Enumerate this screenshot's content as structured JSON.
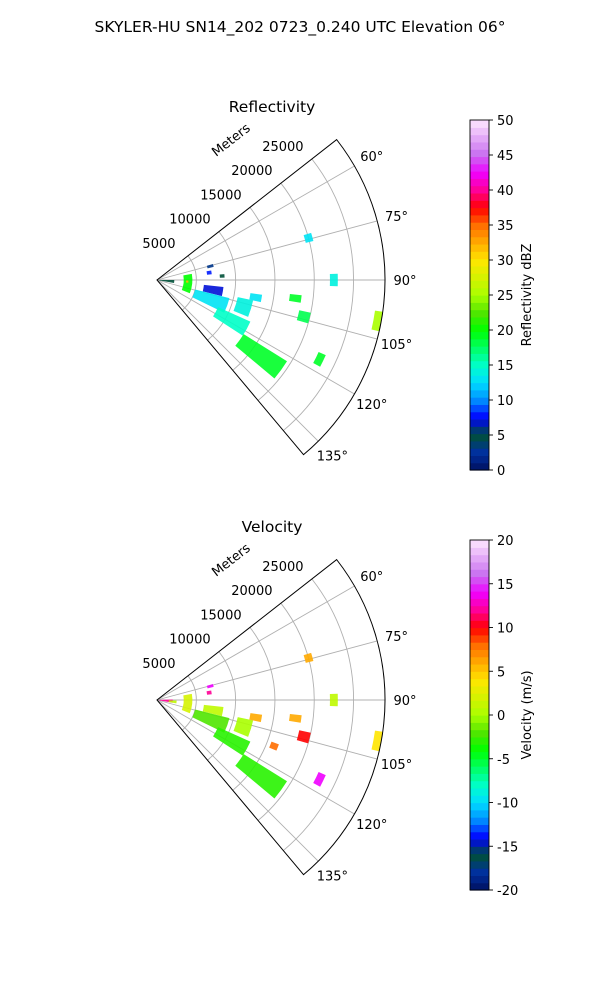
{
  "suptitle": "SKYLER-HU  SN14_202  0723_0.240 UTC Elevation 06°",
  "chart_data": [
    {
      "type": "polar-sector",
      "title": "Reflectivity",
      "radial_label": "Meters",
      "radial_ticks": [
        "5000",
        "10000",
        "15000",
        "20000",
        "25000"
      ],
      "radial_values": [
        5000,
        10000,
        15000,
        20000,
        25000
      ],
      "rmax": 29000,
      "theta_ticks": [
        "60°",
        "75°",
        "90°",
        "105°",
        "120°",
        "135°"
      ],
      "theta_values": [
        60,
        75,
        90,
        105,
        120,
        135
      ],
      "theta_range": [
        52,
        140
      ],
      "colorbar": {
        "label": "Reflectivity dBZ",
        "range": [
          0,
          50
        ],
        "ticks": [
          "0",
          "5",
          "10",
          "15",
          "20",
          "25",
          "30",
          "35",
          "40",
          "45",
          "50"
        ],
        "tick_values": [
          0,
          5,
          10,
          15,
          20,
          25,
          30,
          35,
          40,
          45,
          50
        ]
      },
      "echo_regions": [
        {
          "theta": [
            90,
            100
          ],
          "r": [
            300,
            2200
          ],
          "value": 5
        },
        {
          "theta": [
            80,
            112
          ],
          "r": [
            3400,
            4500
          ],
          "value": 20
        },
        {
          "theta": [
            91,
            95
          ],
          "r": [
            3700,
            4000
          ],
          "value": 32
        },
        {
          "theta": [
            96,
            104
          ],
          "r": [
            6000,
            8500
          ],
          "value": 7
        },
        {
          "theta": [
            104,
            116
          ],
          "r": [
            5000,
            9500
          ],
          "value": 13
        },
        {
          "theta": [
            114,
            123
          ],
          "r": [
            8500,
            13000
          ],
          "value": 15
        },
        {
          "theta": [
            122,
            130
          ],
          "r": [
            13000,
            19500
          ],
          "value": 19
        },
        {
          "theta": [
            102,
            112
          ],
          "r": [
            10500,
            12500
          ],
          "value": 14
        },
        {
          "theta": [
            98,
            102
          ],
          "r": [
            12000,
            13500
          ],
          "value": 13
        },
        {
          "theta": [
            96,
            99
          ],
          "r": [
            17000,
            18500
          ],
          "value": 19
        },
        {
          "theta": [
            102,
            106
          ],
          "r": [
            18500,
            20000
          ],
          "value": 18
        },
        {
          "theta": [
            114,
            118
          ],
          "r": [
            22500,
            23500
          ],
          "value": 19
        },
        {
          "theta": [
            98,
            103
          ],
          "r": [
            28000,
            29000
          ],
          "value": 25
        },
        {
          "theta": [
            88,
            92
          ],
          "r": [
            22000,
            23000
          ],
          "value": 14
        },
        {
          "theta": [
            73,
            76
          ],
          "r": [
            19500,
            20500
          ],
          "value": 13
        },
        {
          "theta": [
            85,
            88
          ],
          "r": [
            8000,
            8600
          ],
          "value": 5
        },
        {
          "theta": [
            74,
            77
          ],
          "r": [
            6600,
            7400
          ],
          "value": 3
        },
        {
          "theta": [
            80,
            84
          ],
          "r": [
            6400,
            7000
          ],
          "value": 8
        }
      ]
    },
    {
      "type": "polar-sector",
      "title": "Velocity",
      "radial_label": "Meters",
      "radial_ticks": [
        "5000",
        "10000",
        "15000",
        "20000",
        "25000"
      ],
      "radial_values": [
        5000,
        10000,
        15000,
        20000,
        25000
      ],
      "rmax": 29000,
      "theta_ticks": [
        "60°",
        "75°",
        "90°",
        "105°",
        "120°",
        "135°"
      ],
      "theta_values": [
        60,
        75,
        90,
        105,
        120,
        135
      ],
      "theta_range": [
        52,
        140
      ],
      "colorbar": {
        "label": "Velocity (m/s)",
        "range": [
          -20,
          20
        ],
        "ticks": [
          "-20",
          "-15",
          "-10",
          "-5",
          "0",
          "5",
          "10",
          "15",
          "20"
        ],
        "tick_values": [
          -20,
          -15,
          -10,
          -5,
          0,
          5,
          10,
          15,
          20
        ]
      },
      "echo_regions": [
        {
          "theta": [
            88,
            100
          ],
          "r": [
            300,
            2000
          ],
          "value": 12
        },
        {
          "theta": [
            92,
            100
          ],
          "r": [
            1500,
            2500
          ],
          "value": 1
        },
        {
          "theta": [
            80,
            112
          ],
          "r": [
            3400,
            4500
          ],
          "value": 2
        },
        {
          "theta": [
            96,
            104
          ],
          "r": [
            6000,
            8500
          ],
          "value": 1
        },
        {
          "theta": [
            104,
            116
          ],
          "r": [
            5000,
            9500
          ],
          "value": -2
        },
        {
          "theta": [
            114,
            123
          ],
          "r": [
            8500,
            13000
          ],
          "value": -3
        },
        {
          "theta": [
            122,
            130
          ],
          "r": [
            13000,
            19500
          ],
          "value": -3
        },
        {
          "theta": [
            102,
            112
          ],
          "r": [
            10500,
            12500
          ],
          "value": 0
        },
        {
          "theta": [
            98,
            102
          ],
          "r": [
            12000,
            13500
          ],
          "value": 6
        },
        {
          "theta": [
            96,
            99
          ],
          "r": [
            17000,
            18500
          ],
          "value": 6
        },
        {
          "theta": [
            102,
            106
          ],
          "r": [
            18500,
            20000
          ],
          "value": 10
        },
        {
          "theta": [
            110,
            113
          ],
          "r": [
            15500,
            16500
          ],
          "value": 8
        },
        {
          "theta": [
            114,
            118
          ],
          "r": [
            22500,
            23500
          ],
          "value": 14
        },
        {
          "theta": [
            98,
            103
          ],
          "r": [
            28000,
            29000
          ],
          "value": 4
        },
        {
          "theta": [
            88,
            92
          ],
          "r": [
            22000,
            23000
          ],
          "value": 1
        },
        {
          "theta": [
            73,
            76
          ],
          "r": [
            19500,
            20500
          ],
          "value": 6
        },
        {
          "theta": [
            74,
            77
          ],
          "r": [
            6600,
            7400
          ],
          "value": 14
        },
        {
          "theta": [
            80,
            84
          ],
          "r": [
            6400,
            7000
          ],
          "value": 12
        }
      ]
    }
  ]
}
